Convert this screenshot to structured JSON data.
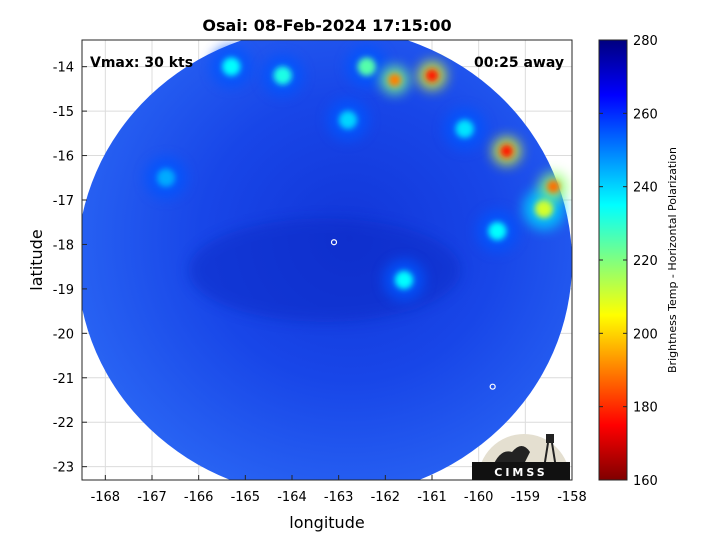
{
  "chart_data": {
    "type": "heatmap",
    "title": "Osai: 08-Feb-2024 17:15:00",
    "xlabel": "longitude",
    "ylabel": "latitude",
    "xlim": [
      -168.5,
      -158
    ],
    "ylim": [
      -23.3,
      -13.4
    ],
    "xticks": [
      -168,
      -167,
      -166,
      -165,
      -164,
      -163,
      -162,
      -161,
      -160,
      -159,
      -158
    ],
    "yticks": [
      -14,
      -15,
      -16,
      -17,
      -18,
      -19,
      -20,
      -21,
      -22,
      -23
    ],
    "grid": true,
    "annotations": {
      "left": "Vmax: 30 kts",
      "right": "00:25 away"
    },
    "colorbar": {
      "label": "Brightness Temp - Horizontal Polarization",
      "range": [
        160,
        280
      ],
      "ticks": [
        280,
        260,
        240,
        220,
        200,
        180,
        160
      ]
    },
    "swath": {
      "center_lon": -163.3,
      "center_lat": -18.4,
      "radius_deg": 5.3
    },
    "features": [
      {
        "lon": -161.0,
        "lat": -14.2,
        "value": 178
      },
      {
        "lon": -161.8,
        "lat": -14.3,
        "value": 190
      },
      {
        "lon": -159.4,
        "lat": -15.9,
        "value": 178
      },
      {
        "lon": -158.4,
        "lat": -16.7,
        "value": 188
      },
      {
        "lon": -158.6,
        "lat": -17.2,
        "value": 210
      },
      {
        "lon": -162.4,
        "lat": -14.0,
        "value": 225
      },
      {
        "lon": -164.2,
        "lat": -14.2,
        "value": 232
      },
      {
        "lon": -165.3,
        "lat": -14.0,
        "value": 235
      },
      {
        "lon": -159.6,
        "lat": -17.7,
        "value": 235
      },
      {
        "lon": -161.6,
        "lat": -18.8,
        "value": 235
      },
      {
        "lon": -160.3,
        "lat": -15.4,
        "value": 238
      },
      {
        "lon": -162.8,
        "lat": -15.2,
        "value": 240
      },
      {
        "lon": -166.7,
        "lat": -16.5,
        "value": 245
      }
    ],
    "markers": [
      {
        "lon": -163.1,
        "lat": -17.95
      },
      {
        "lon": -159.7,
        "lat": -21.2
      }
    ]
  },
  "logo": {
    "text": "CIMSS"
  }
}
